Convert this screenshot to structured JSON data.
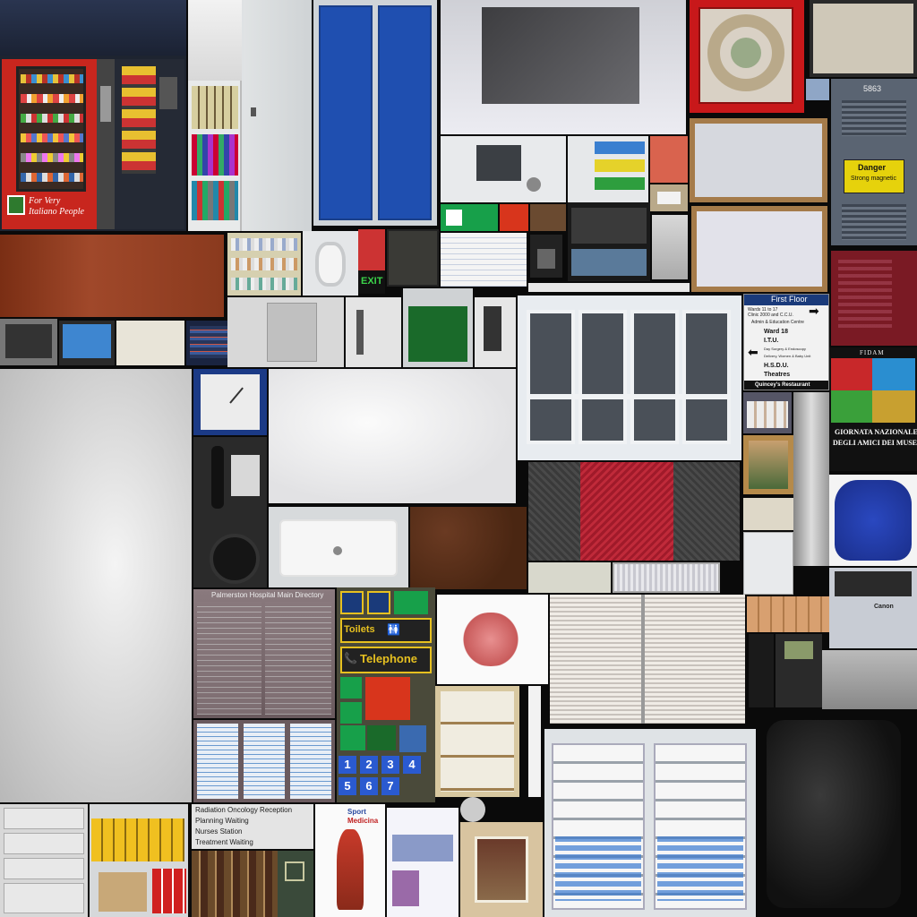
{
  "vending": {
    "slogan_line1": "For Very",
    "slogan_line2": "Italiano People"
  },
  "locker": {
    "number": "5863",
    "danger_title": "Danger",
    "danger_sub": "Strong magnetic"
  },
  "signs": {
    "exit": "EXIT"
  },
  "directory": {
    "title": "First Floor",
    "wards": "Wards 11 to 17",
    "clinic": "Clinic 2000 and C.C.U.",
    "admin": "Admin & Education Centre",
    "ward18": "Ward 18",
    "itu": "I.T.U.",
    "day_surgery": "Day Surgery & Endoscopy",
    "delivery": "Delivery, Women & Baby Unit",
    "hsdu": "H.S.D.U.",
    "theatres": "Theatres",
    "restaurant": "Quincey's Restaurant"
  },
  "poster": {
    "brand": "FIDAM",
    "line1": "GIORNATA NAZIONALE",
    "line2": "DEGLI AMICI DEI MUSEI"
  },
  "main_directory": {
    "title": "Palmerston Hospital Main Directory"
  },
  "wayfinding": {
    "toilets": "Toilets",
    "telephone": "Telephone",
    "numbers": [
      "1",
      "2",
      "3",
      "4",
      "5",
      "6",
      "7"
    ]
  },
  "reception_sign": {
    "items": [
      "Radiation Oncology Reception",
      "Planning Waiting",
      "Nurses Station",
      "Treatment Waiting"
    ]
  },
  "sport_poster": {
    "title_a": "Sport",
    "title_b": "Medicina"
  },
  "printer": {
    "brand": "Canon"
  }
}
